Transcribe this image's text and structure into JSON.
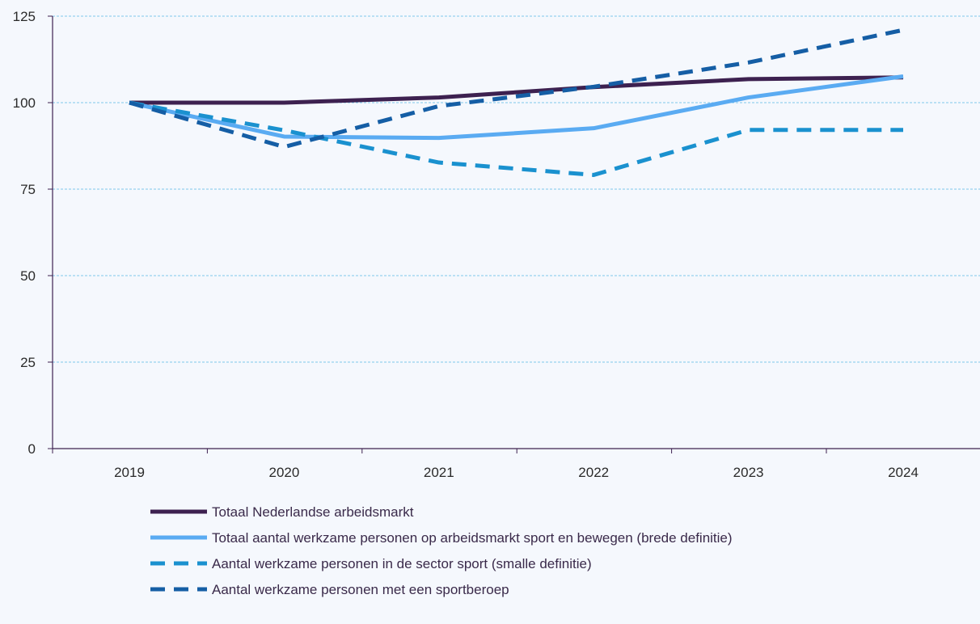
{
  "chart_data": {
    "type": "line",
    "categories": [
      "2019",
      "2020",
      "2021",
      "2022",
      "2023",
      "2024"
    ],
    "ylim": [
      0,
      125
    ],
    "yticks": [
      0,
      25,
      50,
      75,
      100,
      125
    ],
    "grid": true,
    "legend_position": "bottom",
    "series": [
      {
        "name": "Totaal Nederlandse arbeidsmarkt",
        "values": [
          100,
          100,
          101.5,
          104.5,
          106.8,
          107.3
        ],
        "color": "#3d2150",
        "style": "solid"
      },
      {
        "name": "Totaal aantal werkzame personen op arbeidsmarkt sport en bewegen (brede definitie)",
        "values": [
          100,
          90.2,
          89.8,
          92.6,
          101.5,
          107.6
        ],
        "color": "#5aabf2",
        "style": "solid"
      },
      {
        "name": "Aantal werkzame personen in de sector sport (smalle definitie)",
        "values": [
          100,
          92,
          82.7,
          79.1,
          92.1,
          92.1
        ],
        "color": "#1a91cf",
        "style": "dashed"
      },
      {
        "name": "Aantal werkzame personen met een sportberoep",
        "values": [
          100,
          87.2,
          99,
          104.6,
          111.6,
          121
        ],
        "color": "#155ea5",
        "style": "dashed"
      }
    ]
  }
}
